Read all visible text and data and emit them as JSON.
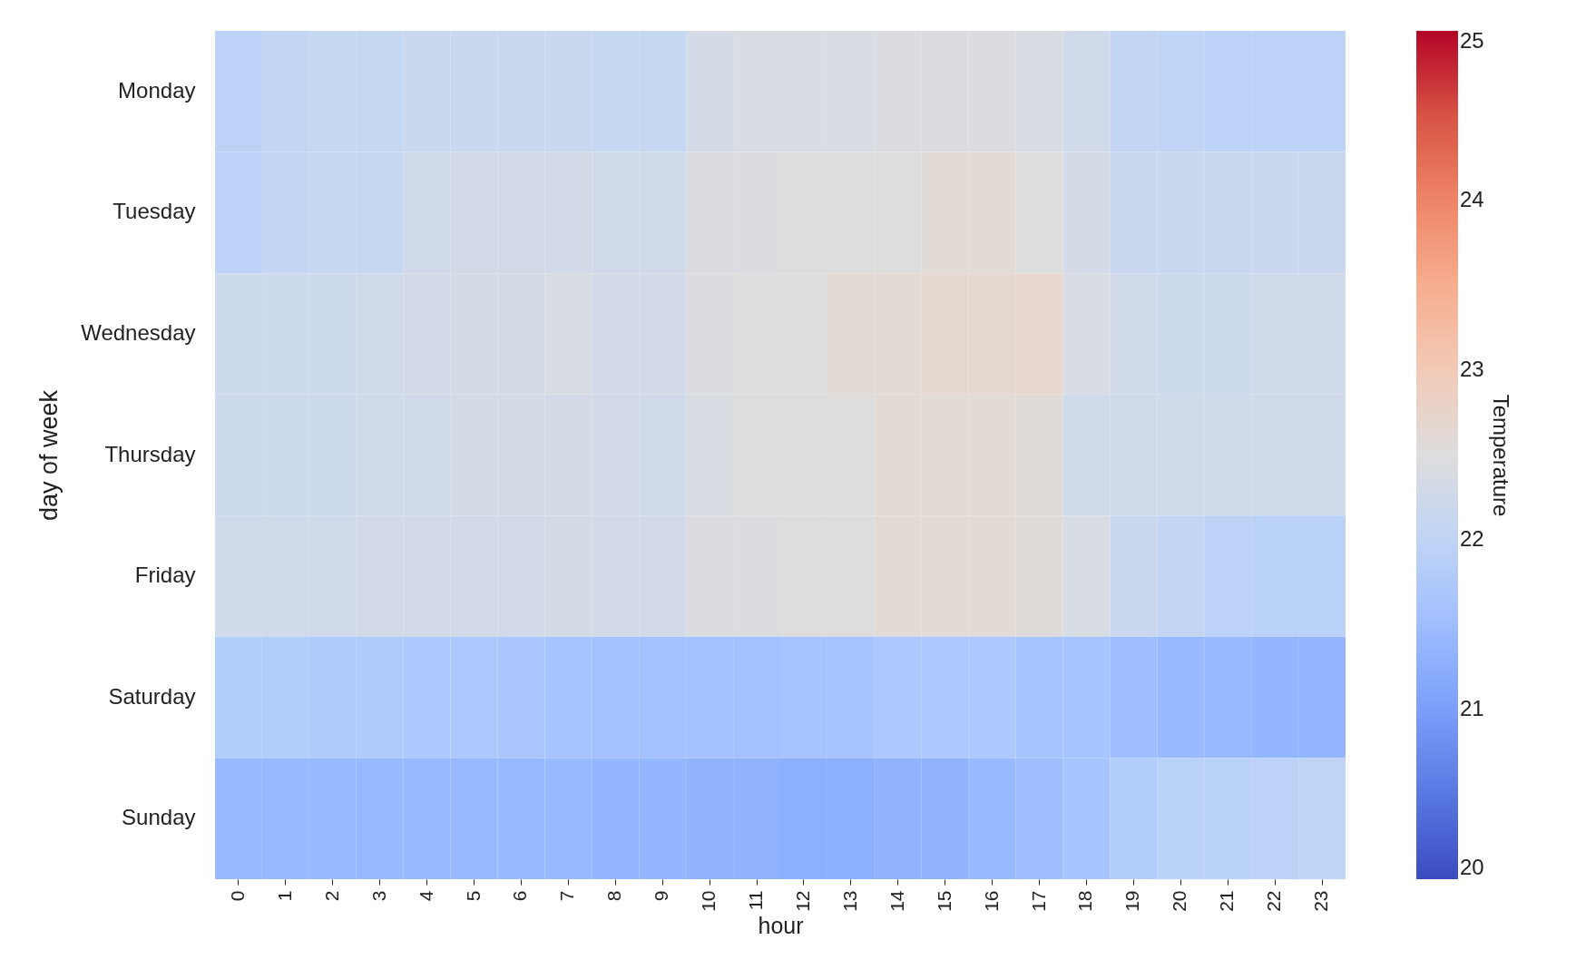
{
  "chart_data": {
    "type": "heatmap",
    "xlabel": "hour",
    "ylabel": "day of week",
    "clabel": "Temperature",
    "categories": [
      "0",
      "1",
      "2",
      "3",
      "4",
      "5",
      "6",
      "7",
      "8",
      "9",
      "10",
      "11",
      "12",
      "13",
      "14",
      "15",
      "16",
      "17",
      "18",
      "19",
      "20",
      "21",
      "22",
      "23"
    ],
    "y_categories": [
      "Monday",
      "Tuesday",
      "Wednesday",
      "Thursday",
      "Friday",
      "Saturday",
      "Sunday"
    ],
    "cells": [
      [
        21.95,
        22.05,
        22.1,
        22.1,
        22.15,
        22.15,
        22.15,
        22.15,
        22.1,
        22.1,
        22.35,
        22.4,
        22.4,
        22.4,
        22.45,
        22.45,
        22.45,
        22.4,
        22.25,
        22.05,
        22.0,
        21.95,
        21.95,
        21.95
      ],
      [
        21.95,
        22.05,
        22.1,
        22.1,
        22.25,
        22.3,
        22.3,
        22.3,
        22.25,
        22.25,
        22.45,
        22.45,
        22.5,
        22.5,
        22.5,
        22.6,
        22.6,
        22.5,
        22.35,
        22.15,
        22.15,
        22.15,
        22.15,
        22.15
      ],
      [
        22.2,
        22.2,
        22.2,
        22.25,
        22.3,
        22.35,
        22.35,
        22.4,
        22.3,
        22.3,
        22.45,
        22.5,
        22.5,
        22.6,
        22.6,
        22.65,
        22.65,
        22.7,
        22.4,
        22.25,
        22.2,
        22.2,
        22.25,
        22.25
      ],
      [
        22.2,
        22.2,
        22.2,
        22.25,
        22.25,
        22.35,
        22.35,
        22.35,
        22.3,
        22.25,
        22.4,
        22.5,
        22.5,
        22.5,
        22.6,
        22.6,
        22.6,
        22.55,
        22.25,
        22.25,
        22.25,
        22.25,
        22.25,
        22.25
      ],
      [
        22.25,
        22.25,
        22.25,
        22.3,
        22.3,
        22.3,
        22.3,
        22.35,
        22.3,
        22.3,
        22.45,
        22.45,
        22.5,
        22.5,
        22.6,
        22.6,
        22.6,
        22.55,
        22.4,
        22.15,
        22.05,
        21.95,
        21.9,
        21.9
      ],
      [
        21.8,
        21.8,
        21.75,
        21.75,
        21.7,
        21.7,
        21.65,
        21.6,
        21.55,
        21.55,
        21.55,
        21.55,
        21.6,
        21.6,
        21.7,
        21.7,
        21.7,
        21.6,
        21.6,
        21.5,
        21.4,
        21.4,
        21.35,
        21.35
      ],
      [
        21.4,
        21.4,
        21.4,
        21.4,
        21.4,
        21.4,
        21.4,
        21.4,
        21.35,
        21.35,
        21.3,
        21.3,
        21.25,
        21.25,
        21.3,
        21.3,
        21.4,
        21.5,
        21.6,
        21.8,
        21.9,
        21.9,
        21.95,
        22.0
      ]
    ],
    "clim": [
      20,
      25
    ],
    "cticks": [
      20,
      21,
      22,
      23,
      24,
      25
    ]
  }
}
